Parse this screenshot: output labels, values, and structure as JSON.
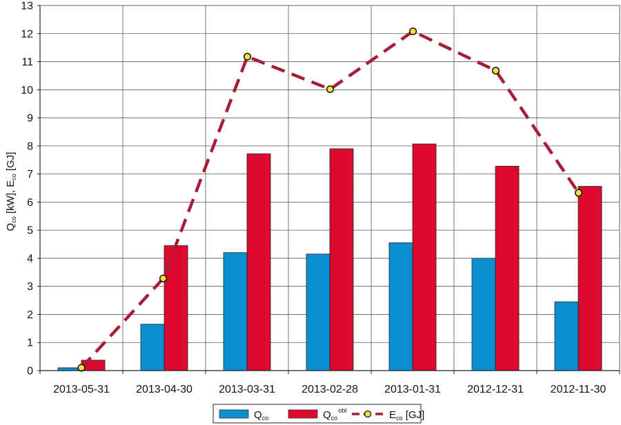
{
  "chart_data": {
    "type": "bar",
    "categories": [
      "2013-05-31",
      "2013-04-30",
      "2013-03-31",
      "2013-02-28",
      "2013-01-31",
      "2012-12-31",
      "2012-11-30"
    ],
    "ylim": [
      0,
      13
    ],
    "yticks": [
      0,
      1,
      2,
      3,
      4,
      5,
      6,
      7,
      8,
      9,
      10,
      11,
      12,
      13
    ],
    "grid": true,
    "legend_position": "bottom",
    "ylabel": {
      "q": "Q",
      "q_sub": "co",
      "mid": " [kW], E",
      "e_sub": "co",
      "end": " [GJ]"
    },
    "series": [
      {
        "kind": "bar",
        "legend": {
          "main": "Q",
          "sub": "co",
          "sup": "",
          "suffix": ""
        },
        "color": "#0a8fd0",
        "values": [
          0.1,
          1.65,
          4.2,
          4.15,
          4.55,
          4.0,
          2.45
        ]
      },
      {
        "kind": "bar",
        "legend": {
          "main": "Q",
          "sub": "co",
          "sup": "obl",
          "suffix": ""
        },
        "color": "#dd0a2f",
        "values": [
          0.37,
          4.45,
          7.72,
          7.9,
          8.07,
          7.28,
          6.56
        ]
      },
      {
        "kind": "line",
        "legend": {
          "main": "E",
          "sub": "co",
          "sup": "",
          "suffix": " [GJ]"
        },
        "color": "#a71d36",
        "marker_color": "#f3e23a",
        "values": [
          0.1,
          3.28,
          11.18,
          10.02,
          12.08,
          10.68,
          6.33
        ]
      }
    ]
  }
}
